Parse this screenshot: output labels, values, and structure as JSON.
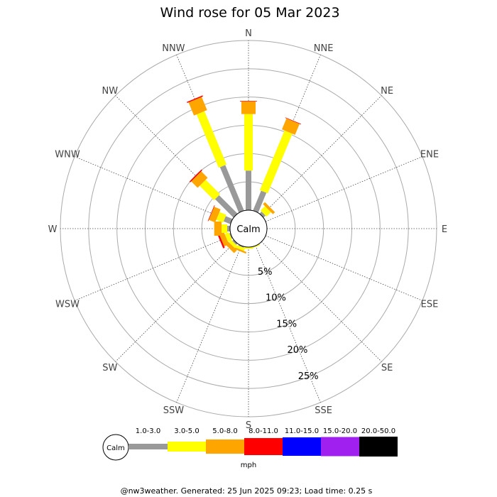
{
  "chart_data": {
    "type": "wind-rose",
    "title": "Wind rose for 05 Mar 2023",
    "directions": [
      "N",
      "NNE",
      "NE",
      "ENE",
      "E",
      "ESE",
      "SE",
      "SSE",
      "S",
      "SSW",
      "SW",
      "WSW",
      "W",
      "WNW",
      "NW",
      "NNW"
    ],
    "ring_labels": [
      "5%",
      "10%",
      "15%",
      "20%",
      "25%"
    ],
    "rings_percent": [
      5,
      10,
      15,
      20,
      25
    ],
    "rmax_percent": 30,
    "calm_label": "Calm",
    "speed_unit": "mph",
    "bins": [
      {
        "label": "1.0-3.0",
        "color": "#999999"
      },
      {
        "label": "3.0-5.0",
        "color": "#ffff00"
      },
      {
        "label": "5.0-8.0",
        "color": "#ffa500"
      },
      {
        "label": "8.0-11.0",
        "color": "#ff0000"
      },
      {
        "label": "11.0-15.0",
        "color": "#0000ff"
      },
      {
        "label": "15.0-20.0",
        "color": "#a020f0"
      },
      {
        "label": "20.0-50.0",
        "color": "#000000"
      }
    ],
    "series": [
      {
        "direction": "N",
        "values": [
          7.0,
          10.0,
          2.2,
          0.1,
          0,
          0,
          0
        ]
      },
      {
        "direction": "NNE",
        "values": [
          3.8,
          11.4,
          2.1,
          0.1,
          0,
          0,
          0
        ]
      },
      {
        "direction": "NE",
        "values": [
          0.5,
          1.1,
          0.5,
          0,
          0,
          0,
          0
        ]
      },
      {
        "direction": "ENE",
        "values": [
          0,
          0,
          0,
          0,
          0,
          0,
          0
        ]
      },
      {
        "direction": "E",
        "values": [
          0,
          0,
          0,
          0,
          0,
          0,
          0
        ]
      },
      {
        "direction": "ESE",
        "values": [
          0,
          0,
          0,
          0,
          0,
          0,
          0
        ]
      },
      {
        "direction": "SE",
        "values": [
          0,
          0,
          0,
          0,
          0,
          0,
          0
        ]
      },
      {
        "direction": "SSE",
        "values": [
          0,
          0.2,
          0,
          0,
          0,
          0,
          0
        ]
      },
      {
        "direction": "S",
        "values": [
          0,
          0.3,
          0,
          0,
          0,
          0,
          0
        ]
      },
      {
        "direction": "SSW",
        "values": [
          0.2,
          0.5,
          0.3,
          0,
          0,
          0,
          0
        ]
      },
      {
        "direction": "SW",
        "values": [
          0.3,
          0.6,
          0.7,
          0,
          0,
          0,
          0
        ]
      },
      {
        "direction": "WSW",
        "values": [
          0.2,
          0.8,
          0.9,
          0.3,
          0,
          0,
          0
        ]
      },
      {
        "direction": "W",
        "values": [
          0.5,
          1.0,
          1.3,
          0,
          0,
          0,
          0
        ]
      },
      {
        "direction": "WNW",
        "values": [
          1.3,
          1.3,
          1.2,
          0.1,
          0,
          0,
          0
        ]
      },
      {
        "direction": "NW",
        "values": [
          4.6,
          3.6,
          1.6,
          0.2,
          0,
          0,
          0
        ]
      },
      {
        "direction": "NNW",
        "values": [
          8.7,
          10.2,
          2.5,
          0.2,
          0,
          0,
          0
        ]
      }
    ]
  },
  "footer": "@nw3weather. Generated: 25 Jun 2025 09:23; Load time: 0.25 s"
}
